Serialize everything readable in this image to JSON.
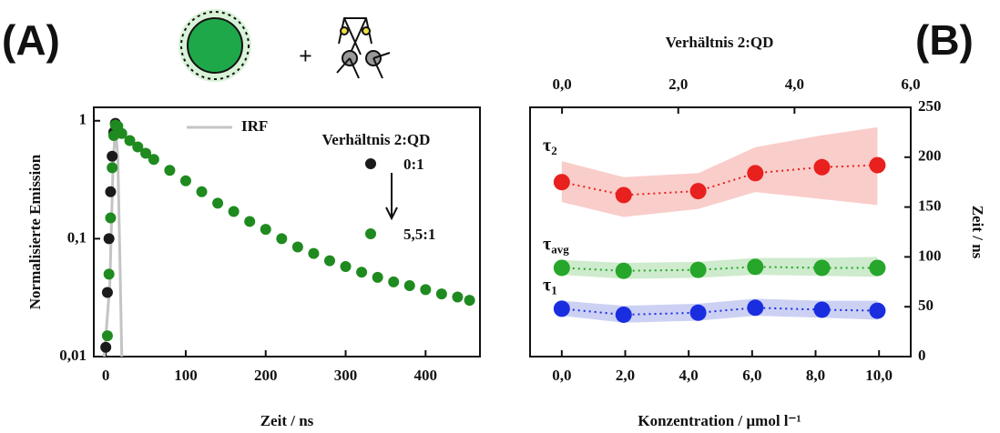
{
  "panels": [
    "(A)",
    "(B)"
  ],
  "plus": "+",
  "chart_data": [
    {
      "type": "scatter",
      "xlabel": "Zeit / ns",
      "ylabel": "Normalisierte Emission",
      "xlim": [
        -15,
        468
      ],
      "xticks": [
        0,
        100,
        200,
        300,
        400
      ],
      "ylim": [
        0.01,
        1.3
      ],
      "yticks": [
        {
          "value": 0.01,
          "label": "0,01"
        },
        {
          "value": 0.1,
          "label": "0,1"
        },
        1
      ],
      "log_y": true,
      "legend_title": "Verhältnis 2:QD",
      "series": [
        {
          "name": "IRF",
          "kind": "line",
          "color": "#c4c4c4",
          "x": [
            -2,
            5,
            9,
            12,
            15,
            18,
            20
          ],
          "values": [
            0.01,
            0.04,
            0.4,
            0.9,
            0.5,
            0.05,
            0.01
          ]
        },
        {
          "name": "0:1",
          "kind": "points",
          "color": "#1a1a1a",
          "x": [
            0,
            2,
            4,
            6,
            8,
            10,
            12
          ],
          "values": [
            0.012,
            0.035,
            0.1,
            0.25,
            0.5,
            0.8,
            0.95
          ]
        },
        {
          "name": "5,5:1",
          "kind": "points",
          "color": "#1f8a1f",
          "x": [
            2,
            4,
            6,
            8,
            10,
            12,
            15,
            20,
            30,
            40,
            50,
            60,
            80,
            100,
            120,
            140,
            160,
            180,
            200,
            220,
            240,
            260,
            280,
            300,
            320,
            340,
            360,
            380,
            400,
            420,
            440,
            455
          ],
          "values": [
            0.015,
            0.05,
            0.15,
            0.4,
            0.75,
            0.92,
            0.9,
            0.78,
            0.68,
            0.6,
            0.53,
            0.47,
            0.38,
            0.31,
            0.25,
            0.2,
            0.17,
            0.14,
            0.12,
            0.1,
            0.085,
            0.075,
            0.065,
            0.058,
            0.052,
            0.047,
            0.043,
            0.04,
            0.037,
            0.034,
            0.032,
            0.03
          ]
        }
      ]
    },
    {
      "type": "line",
      "xlabel": "Konzentration / µmol l⁻¹",
      "x2label": "Verhältnis 2:QD",
      "ylabel": "Zeit / ns",
      "xlim": [
        -1,
        11
      ],
      "xticks": [
        {
          "value": 0,
          "label": "0,0"
        },
        {
          "value": 2,
          "label": "2,0"
        },
        {
          "value": 4,
          "label": "4,0"
        },
        {
          "value": 6,
          "label": "6,0"
        },
        {
          "value": 8,
          "label": "8,0"
        },
        {
          "value": 10,
          "label": "10,0"
        }
      ],
      "x2lim": [
        -0.55,
        6
      ],
      "x2ticks": [
        {
          "value": 0,
          "label": "0,0"
        },
        {
          "value": 2,
          "label": "2,0"
        },
        {
          "value": 4,
          "label": "4,0"
        },
        {
          "value": 6,
          "label": "6,0"
        }
      ],
      "ylim": [
        0,
        250
      ],
      "yticks": [
        0,
        50,
        100,
        150,
        200,
        250
      ],
      "x": [
        0,
        1.95,
        4.3,
        6.1,
        8.2,
        9.95
      ],
      "series": [
        {
          "symbol": "τ",
          "subscript": "2",
          "color": "#e8201e",
          "band_color": "#f6b8b4",
          "values": [
            175,
            162,
            166,
            184,
            190,
            192
          ],
          "lower": [
            155,
            140,
            148,
            165,
            158,
            152
          ],
          "upper": [
            196,
            180,
            184,
            210,
            222,
            230
          ]
        },
        {
          "symbol": "τ",
          "subscript": "avg",
          "color": "#26a62a",
          "band_color": "#b9e3b8",
          "values": [
            89,
            86,
            87,
            90,
            89,
            89
          ],
          "lower": [
            82,
            78,
            79,
            82,
            81,
            80
          ],
          "upper": [
            97,
            94,
            95,
            99,
            99,
            100
          ]
        },
        {
          "symbol": "τ",
          "subscript": "1",
          "color": "#1a2ee0",
          "band_color": "#b6bdf0",
          "values": [
            48,
            42,
            44,
            49,
            47,
            46
          ],
          "lower": [
            41,
            34,
            36,
            41,
            39,
            37
          ],
          "upper": [
            56,
            51,
            53,
            58,
            56,
            56
          ]
        }
      ]
    }
  ]
}
